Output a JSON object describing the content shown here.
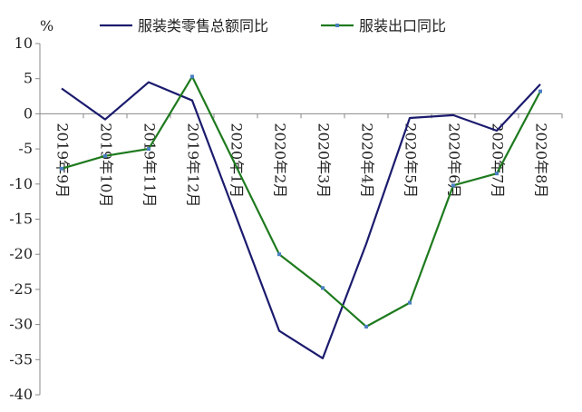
{
  "chart_data": {
    "type": "line",
    "title": "",
    "xlabel": "",
    "ylabel": "%",
    "ylim": [
      -40,
      10
    ],
    "y_ticks": [
      10,
      5,
      0,
      -5,
      -10,
      -15,
      -20,
      -25,
      -30,
      -35,
      -40
    ],
    "grid": false,
    "legend_position": "top",
    "categories": [
      "2019年9月",
      "2019年10月",
      "2019年11月",
      "2019年12月",
      "2020年1月",
      "2020年2月",
      "2020年3月",
      "2020年4月",
      "2020年5月",
      "2020年6月",
      "2020年7月",
      "2020年8月"
    ],
    "series": [
      {
        "name": "服装类零售总额同比",
        "color": "#1b1b6e",
        "marker": false,
        "values": [
          3.6,
          -0.8,
          4.5,
          1.9,
          null,
          -30.9,
          -34.8,
          -18.5,
          -0.6,
          -0.2,
          -2.4,
          4.2
        ]
      },
      {
        "name": "服装出口同比",
        "color": "#1e7a1e",
        "marker": true,
        "values": [
          -7.8,
          -6.0,
          -5.0,
          5.3,
          null,
          -20.0,
          -24.8,
          -30.3,
          -26.9,
          -10.2,
          -8.5,
          3.2
        ]
      }
    ]
  }
}
